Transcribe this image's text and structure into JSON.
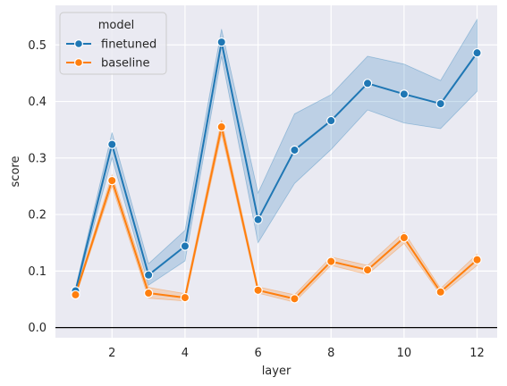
{
  "chart_data": {
    "type": "line",
    "title": "",
    "xlabel": "layer",
    "ylabel": "score",
    "xlim": [
      0.45,
      12.55
    ],
    "ylim": [
      -0.018,
      0.57
    ],
    "xticks": [
      2,
      4,
      6,
      8,
      10,
      12
    ],
    "yticks": [
      0.0,
      0.1,
      0.2,
      0.3,
      0.4,
      0.5
    ],
    "ytick_labels": [
      "0.0",
      "0.1",
      "0.2",
      "0.3",
      "0.4",
      "0.5"
    ],
    "grid": true,
    "reference_line_y": 0.0,
    "legend": {
      "title": "model",
      "placement": "top-left"
    },
    "x": [
      1,
      2,
      3,
      4,
      5,
      6,
      7,
      8,
      9,
      10,
      11,
      12
    ],
    "series": [
      {
        "name": "finetuned",
        "color": "#1f77b4",
        "values": [
          0.065,
          0.324,
          0.093,
          0.144,
          0.505,
          0.191,
          0.314,
          0.366,
          0.432,
          0.413,
          0.396,
          0.486
        ],
        "ci_lower": [
          0.06,
          0.3,
          0.075,
          0.118,
          0.48,
          0.15,
          0.255,
          0.315,
          0.385,
          0.362,
          0.352,
          0.418
        ],
        "ci_upper": [
          0.07,
          0.345,
          0.113,
          0.172,
          0.528,
          0.238,
          0.378,
          0.412,
          0.48,
          0.466,
          0.437,
          0.545
        ]
      },
      {
        "name": "baseline",
        "color": "#ff7f0e",
        "values": [
          0.058,
          0.26,
          0.061,
          0.053,
          0.355,
          0.066,
          0.051,
          0.117,
          0.102,
          0.159,
          0.063,
          0.12
        ],
        "ci_lower": [
          0.055,
          0.25,
          0.052,
          0.047,
          0.343,
          0.061,
          0.045,
          0.11,
          0.094,
          0.149,
          0.058,
          0.11
        ],
        "ci_upper": [
          0.062,
          0.27,
          0.071,
          0.06,
          0.367,
          0.072,
          0.058,
          0.125,
          0.11,
          0.169,
          0.069,
          0.13
        ]
      }
    ]
  }
}
